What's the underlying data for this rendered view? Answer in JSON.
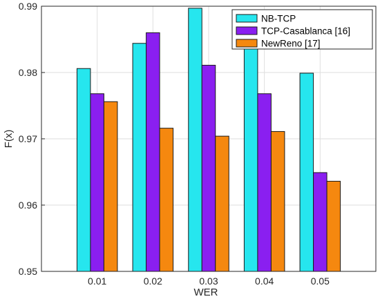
{
  "chart_data": {
    "type": "bar",
    "categories": [
      "0.01",
      "0.02",
      "0.03",
      "0.04",
      "0.05"
    ],
    "series": [
      {
        "name": "NB-TCP",
        "values": [
          0.9806,
          0.9844,
          0.9897,
          0.9848,
          0.9799
        ],
        "color": "#26e6ee"
      },
      {
        "name": "TCP-Casablanca [16]",
        "values": [
          0.9768,
          0.986,
          0.9811,
          0.9768,
          0.9649
        ],
        "color": "#8a1ff0"
      },
      {
        "name": "NewReno [17]",
        "values": [
          0.9756,
          0.9716,
          0.9704,
          0.9711,
          0.9636
        ],
        "color": "#f5880f"
      }
    ],
    "xlabel": "WER",
    "ylabel": "F(x)",
    "ylim": [
      0.95,
      0.99
    ],
    "yticks": [
      "0.95",
      "0.96",
      "0.97",
      "0.98",
      "0.99"
    ],
    "grid": true,
    "legend_position": "top-right"
  }
}
